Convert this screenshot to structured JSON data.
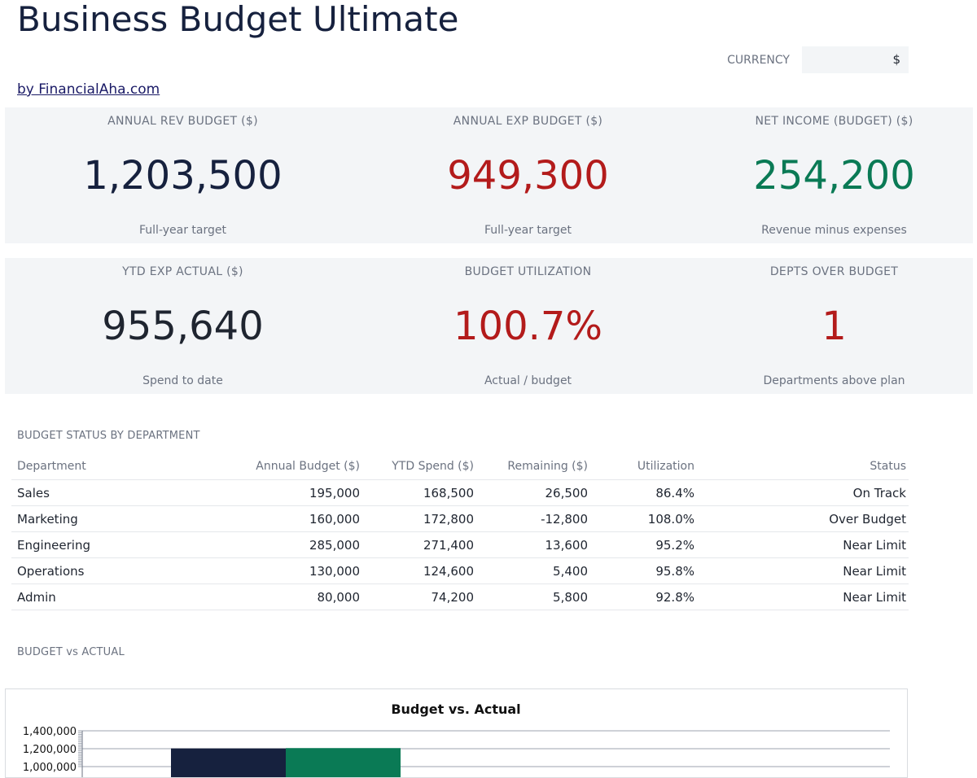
{
  "header": {
    "title": "Business Budget Ultimate",
    "byline": "by FinancialAha.com",
    "currency_label": "CURRENCY",
    "currency_value": "$"
  },
  "kpis_row1": [
    {
      "label": "ANNUAL REV BUDGET ($)",
      "value": "1,203,500",
      "sub": "Full-year target",
      "color": "#16213e"
    },
    {
      "label": "ANNUAL EXP BUDGET ($)",
      "value": "949,300",
      "sub": "Full-year target",
      "color": "#b31b1b"
    },
    {
      "label": "NET INCOME (BUDGET) ($)",
      "value": "254,200",
      "sub": "Revenue minus expenses",
      "color": "#0a7a55"
    }
  ],
  "kpis_row2": [
    {
      "label": "YTD EXP ACTUAL ($)",
      "value": "955,640",
      "sub": "Spend to date",
      "color": "#1f2530"
    },
    {
      "label": "BUDGET UTILIZATION",
      "value": "100.7%",
      "sub": "Actual / budget",
      "color": "#b31b1b"
    },
    {
      "label": "DEPTS OVER BUDGET",
      "value": "1",
      "sub": "Departments above plan",
      "color": "#b31b1b"
    }
  ],
  "status_section": {
    "title": "BUDGET STATUS BY DEPARTMENT",
    "columns": [
      "Department",
      "Annual Budget ($)",
      "YTD Spend ($)",
      "Remaining ($)",
      "Utilization",
      "Status"
    ],
    "rows": [
      [
        "Sales",
        "195,000",
        "168,500",
        "26,500",
        "86.4%",
        "On Track"
      ],
      [
        "Marketing",
        "160,000",
        "172,800",
        "-12,800",
        "108.0%",
        "Over Budget"
      ],
      [
        "Engineering",
        "285,000",
        "271,400",
        "13,600",
        "95.2%",
        "Near Limit"
      ],
      [
        "Operations",
        "130,000",
        "124,600",
        "5,400",
        "95.8%",
        "Near Limit"
      ],
      [
        "Admin",
        "80,000",
        "74,200",
        "5,800",
        "92.8%",
        "Near Limit"
      ]
    ]
  },
  "chart_section": {
    "title": "BUDGET vs ACTUAL"
  },
  "chart_data": {
    "type": "bar",
    "title": "Budget vs. Actual",
    "series": [
      {
        "values": [
          1203500
        ],
        "color": "#16213e"
      },
      {
        "values": [
          1207000
        ],
        "color": "#0a7a55"
      }
    ],
    "yticks": [
      1000000,
      1200000,
      1400000
    ],
    "ytick_labels": [
      "1,000,000",
      "1,200,000",
      "1,400,000"
    ],
    "ylim": [
      0,
      1400000
    ],
    "grid": true
  }
}
